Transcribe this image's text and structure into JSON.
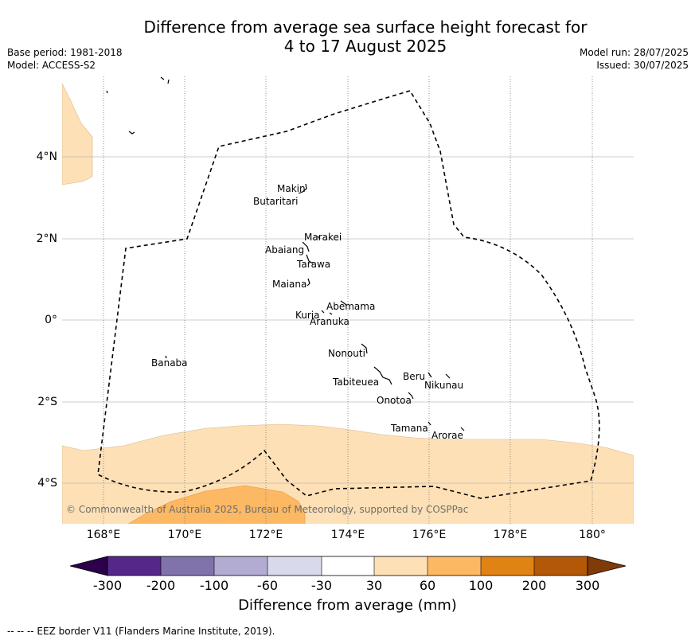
{
  "title_line1": "Difference from average sea surface height forecast for",
  "title_line2": "4 to 17 August 2025",
  "base_period": "Base period: 1981-2018",
  "model": "Model: ACCESS-S2",
  "model_run": "Model run: 28/07/2025",
  "issued": "Issued: 30/07/2025",
  "copyright": "© Commonwealth of Australia 2025, Bureau of Meteorology, supported by COSPPac",
  "y_ticks": [
    "4°N",
    "2°N",
    "0°",
    "2°S",
    "4°S"
  ],
  "x_ticks": [
    "168°E",
    "170°E",
    "172°E",
    "174°E",
    "176°E",
    "178°E",
    "180°"
  ],
  "islands": [
    "Makin",
    "Butaritari",
    "Marakei",
    "Abaiang",
    "Tarawa",
    "Maiana",
    "Abemama",
    "Kuria",
    "Aranuka",
    "Nonouti",
    "Banaba",
    "Tabiteuea",
    "Beru",
    "Nikunau",
    "Onotoa",
    "Tamana",
    "Arorae"
  ],
  "colorbar": {
    "labels": [
      "-300",
      "-200",
      "-100",
      "-60",
      "-30",
      "30",
      "60",
      "100",
      "200",
      "300"
    ],
    "colors": [
      "#2d004b",
      "#542788",
      "#8073ac",
      "#b2abd2",
      "#d8daeb",
      "#ffffff",
      "#fee0b6",
      "#fdb863",
      "#e08214",
      "#b35806",
      "#7f3b08"
    ],
    "title": "Difference from average (mm)"
  },
  "footer": "--  --  -- EEZ border V11 (Flanders Marine Institute, 2019)."
}
